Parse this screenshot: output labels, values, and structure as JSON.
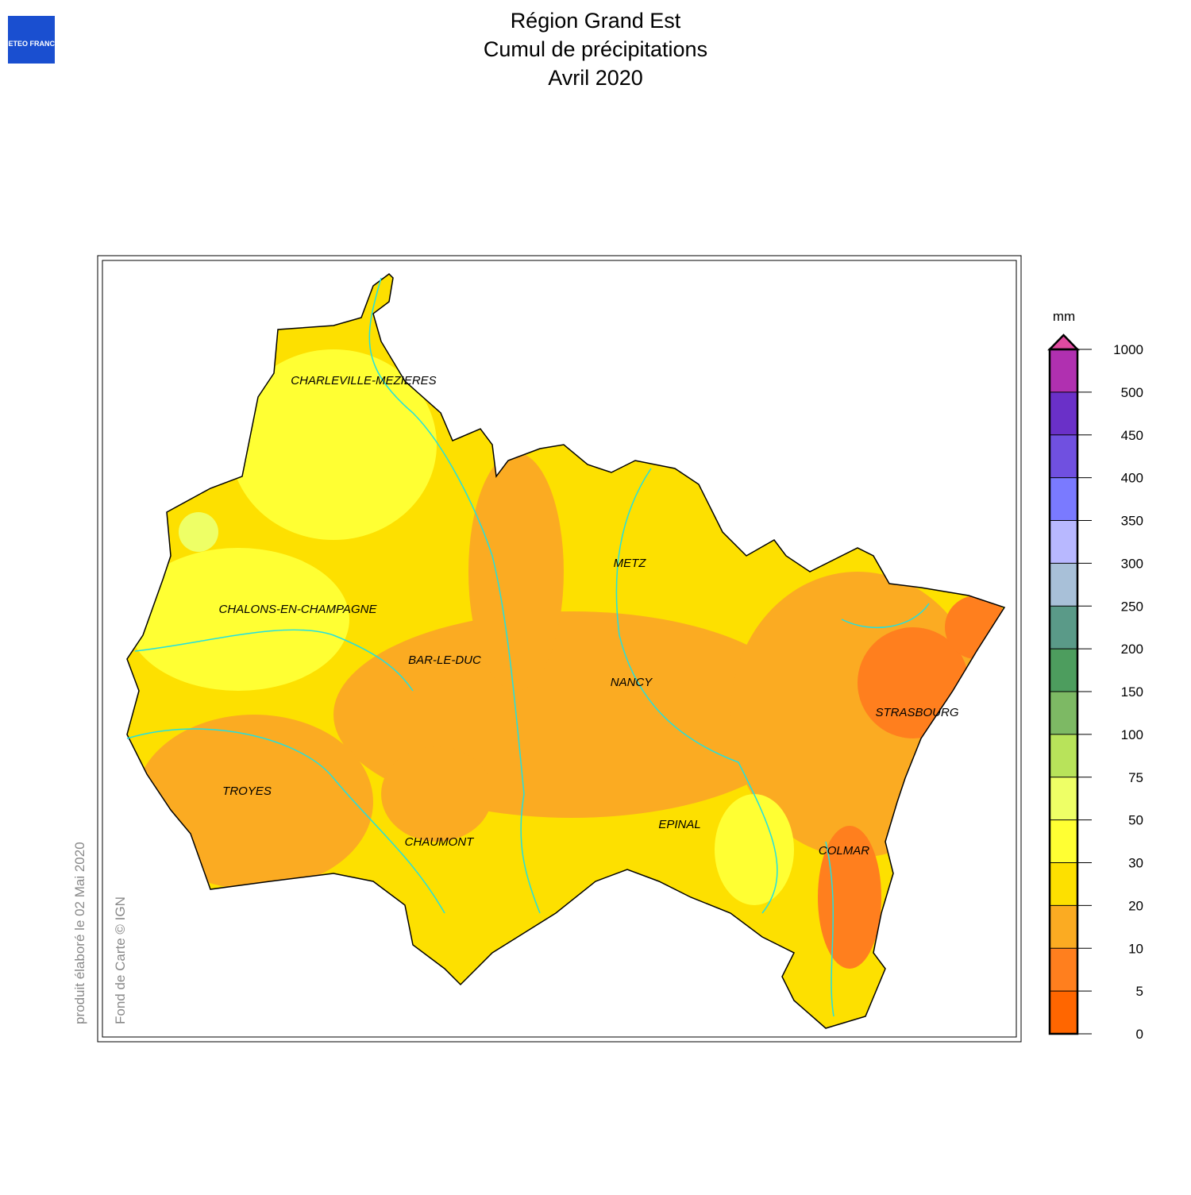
{
  "logo": "METEO FRANCE",
  "title": [
    "Région Grand Est",
    "Cumul de précipitations",
    "Avril 2020"
  ],
  "side_texts": [
    "produit élaboré le 02 Mai 2020",
    "Fond de Carte © IGN"
  ],
  "cities": [
    "CHARLEVILLE-MEZIERES",
    "METZ",
    "CHALONS-EN-CHAMPAGNE",
    "BAR-LE-DUC",
    "NANCY",
    "STRASBOURG",
    "TROYES",
    "CHAUMONT",
    "EPINAL",
    "COLMAR"
  ],
  "legend": {
    "unit": "mm",
    "ticks": [
      0,
      5,
      10,
      20,
      30,
      50,
      75,
      100,
      150,
      200,
      250,
      300,
      350,
      400,
      450,
      500,
      1000
    ],
    "colors": [
      "#ff6600",
      "#ff7f1e",
      "#fbab22",
      "#fde000",
      "#ffff33",
      "#eeff66",
      "#b8e35a",
      "#7db964",
      "#4d9d5e",
      "#5a9a88",
      "#a8c0d8",
      "#b8b8ff",
      "#7a7aff",
      "#7050e0",
      "#6a30c8",
      "#b030b0"
    ],
    "over_color": "#e04aa0"
  }
}
